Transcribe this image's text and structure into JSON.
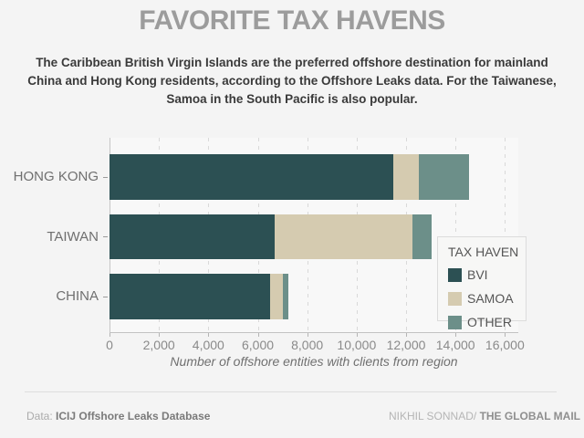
{
  "header": {
    "title": "FAVORITE TAX HAVENS",
    "subtitle": "The Caribbean British Virgin Islands are the preferred offshore destination for mainland China and Hong Kong residents, according to the Offshore Leaks data. For the Taiwanese, Samoa in the South Pacific is also popular."
  },
  "chart_data": {
    "type": "bar",
    "orientation": "horizontal",
    "stacked": true,
    "categories": [
      "HONG KONG",
      "TAIWAN",
      "CHINA"
    ],
    "series": [
      {
        "name": "BVI",
        "color": "#2c5053",
        "values": [
          11500,
          6700,
          6500
        ]
      },
      {
        "name": "SAMOA",
        "color": "#d5cbb0",
        "values": [
          1000,
          5550,
          500
        ]
      },
      {
        "name": "OTHER",
        "color": "#6c8f89",
        "values": [
          2050,
          800,
          220
        ]
      }
    ],
    "title": "FAVORITE TAX HAVENS",
    "xlabel": "Number of offshore entities with clients from region",
    "ylabel": "",
    "xlim": [
      0,
      16000
    ],
    "x_tick_step": 2000,
    "x_ticks": [
      "0",
      "2,000",
      "4,000",
      "6,000",
      "8,000",
      "10,000",
      "12,000",
      "14,000",
      "16,000"
    ],
    "grid": "dashed-vertical",
    "legend_title": "TAX HAVEN",
    "legend_position": "right-inside"
  },
  "footer": {
    "source_prefix": "Data: ",
    "source": "ICIJ Offshore Leaks Database",
    "credit_author": "NIKHIL SONNAD/ ",
    "credit_org": "THE GLOBAL MAIL"
  }
}
